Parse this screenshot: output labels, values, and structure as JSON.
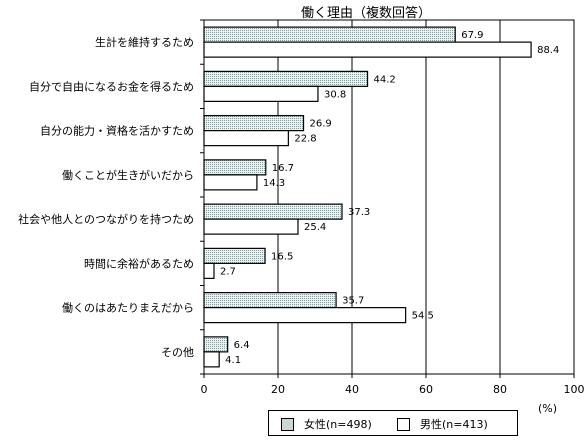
{
  "title": "働く理由（複数回答）",
  "chart_data": {
    "type": "bar",
    "orientation": "horizontal",
    "categories": [
      "生計を維持するため",
      "自分で自由になるお金を得るため",
      "自分の能力・資格を活かすため",
      "働くことが生きがいだから",
      "社会や他人とのつながりを持つため",
      "時間に余裕があるため",
      "働くのはあたりまえだから",
      "その他"
    ],
    "series": [
      {
        "name": "女性(n=498)",
        "values": [
          67.9,
          44.2,
          26.9,
          16.7,
          37.3,
          16.5,
          35.7,
          6.4
        ],
        "value_labels": [
          "67.9",
          "44.2",
          "26.9",
          "16.7",
          "37.3",
          "16.5",
          "35.7",
          "6.4"
        ],
        "fill": "#e6f0f0",
        "pattern": "dotted"
      },
      {
        "name": "男性(n=413)",
        "values": [
          88.4,
          30.8,
          22.8,
          14.3,
          25.4,
          2.7,
          54.5,
          4.1
        ],
        "value_labels": [
          "88.4",
          "30.8",
          "22.8",
          "14.3",
          "25.4",
          "2.7",
          "54.5",
          "4.1"
        ],
        "fill": "#ffffff",
        "pattern": "none"
      }
    ],
    "xlim": [
      0,
      100
    ],
    "xticks": [
      0,
      20,
      40,
      60,
      80,
      100
    ],
    "xtick_labels": [
      "0",
      "20",
      "40",
      "60",
      "80",
      "100"
    ],
    "unit": "(%)",
    "grid": "vertical",
    "legend_position": "bottom"
  }
}
